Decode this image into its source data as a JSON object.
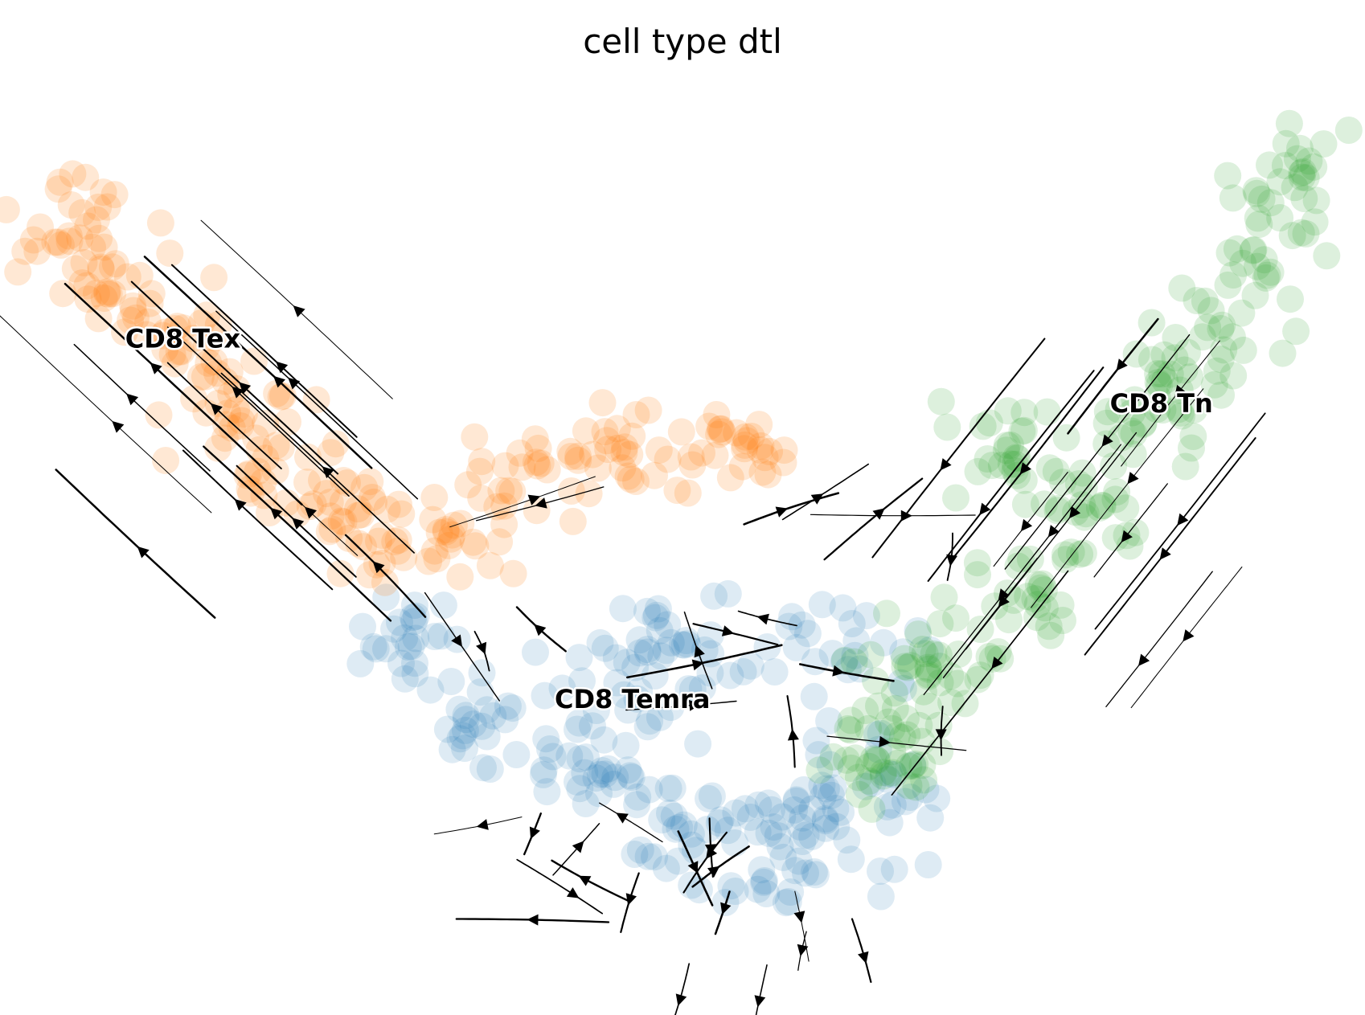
{
  "title": "cell type dtl",
  "chart_data": {
    "type": "scatter",
    "title": "cell type dtl",
    "xlabel": "",
    "ylabel": "",
    "axes_visible": false,
    "grid": false,
    "xlim": [
      0,
      100
    ],
    "ylim": [
      0,
      100
    ],
    "series": [
      {
        "name": "CD8 Temra",
        "color": "#1f77b4",
        "opacity": 0.15,
        "label_at": [
          46,
          32
        ],
        "centroids": [
          [
            28,
            41
          ],
          [
            33,
            31
          ],
          [
            41,
            26
          ],
          [
            48,
            20
          ],
          [
            55,
            11
          ],
          [
            59,
            24
          ],
          [
            64,
            13
          ],
          [
            68,
            36
          ],
          [
            50,
            40
          ],
          [
            46,
            34
          ]
        ]
      },
      {
        "name": "CD8 Tex",
        "color": "#ff7f0e",
        "opacity": 0.18,
        "label_at": [
          12,
          71
        ],
        "centroids": [
          [
            2,
            87
          ],
          [
            6,
            79
          ],
          [
            10,
            72
          ],
          [
            15,
            66
          ],
          [
            19,
            58
          ],
          [
            25,
            52
          ],
          [
            29,
            46
          ],
          [
            36,
            56
          ],
          [
            42,
            59
          ],
          [
            54,
            60
          ]
        ]
      },
      {
        "name": "CD8 Tn",
        "color": "#2ca02c",
        "opacity": 0.16,
        "label_at": [
          86,
          64
        ],
        "centroids": [
          [
            97,
            92
          ],
          [
            94,
            82
          ],
          [
            90,
            72
          ],
          [
            86,
            63
          ],
          [
            81,
            55
          ],
          [
            77,
            46
          ],
          [
            71,
            38
          ],
          [
            67,
            28
          ],
          [
            62,
            22
          ],
          [
            74,
            59
          ]
        ]
      }
    ],
    "streamlines": true
  }
}
